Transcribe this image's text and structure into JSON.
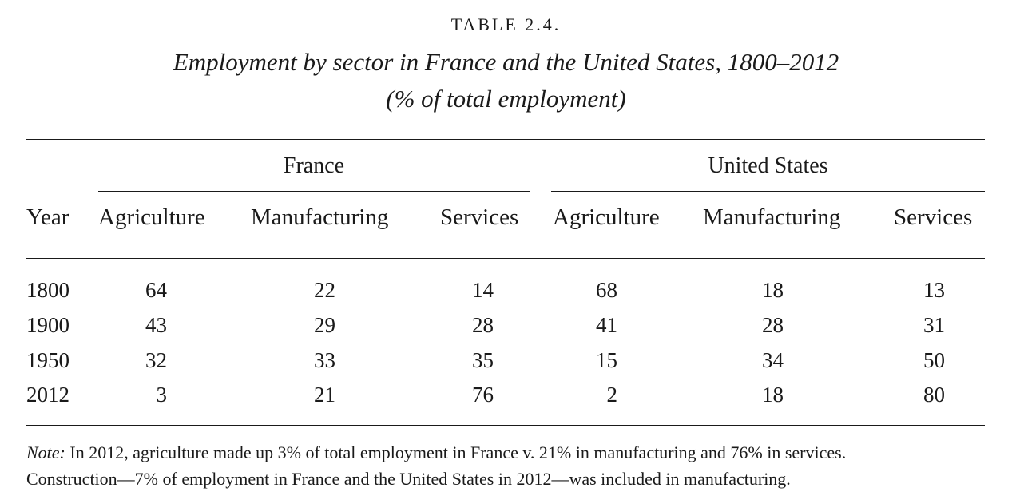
{
  "table_label": "TABLE 2.4.",
  "title_line1": "Employment by sector in France and the United States, 1800–2012",
  "title_line2": "(% of total employment)",
  "groups": {
    "france": "France",
    "us": "United States"
  },
  "headers": {
    "year": "Year",
    "fr_agriculture": "Agriculture",
    "fr_manufacturing": "Manufacturing",
    "fr_services": "Services",
    "us_agriculture": "Agriculture",
    "us_manufacturing": "Manufacturing",
    "us_services": "Services"
  },
  "rows": [
    {
      "year": "1800",
      "fr_agr": "64",
      "fr_man": "22",
      "fr_ser": "14",
      "us_agr": "68",
      "us_man": "18",
      "us_ser": "13"
    },
    {
      "year": "1900",
      "fr_agr": "43",
      "fr_man": "29",
      "fr_ser": "28",
      "us_agr": "41",
      "us_man": "28",
      "us_ser": "31"
    },
    {
      "year": "1950",
      "fr_agr": "32",
      "fr_man": "33",
      "fr_ser": "35",
      "us_agr": "15",
      "us_man": "34",
      "us_ser": "50"
    },
    {
      "year": "2012",
      "fr_agr": "3",
      "fr_man": "21",
      "fr_ser": "76",
      "us_agr": "2",
      "us_man": "18",
      "us_ser": "80"
    }
  ],
  "note": {
    "label": "Note:",
    "line1": " In 2012, agriculture made up 3% of total employment in France v. 21% in manufacturing and 76% in services.",
    "line2": "Construction—7% of employment in France and the United States in 2012—was included in manufacturing."
  }
}
